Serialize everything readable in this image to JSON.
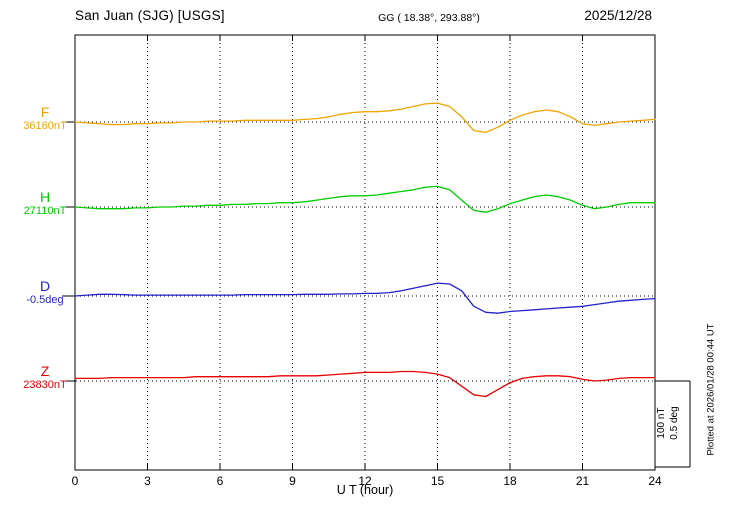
{
  "header": {
    "station": "San Juan (SJG)  [USGS]",
    "geo": "GG ( 18.38°, 293.88°)",
    "date": "2025/12/28"
  },
  "channels": [
    {
      "letter": "F",
      "value": "36160nT",
      "color": "#f0a500"
    },
    {
      "letter": "H",
      "value": "27110nT",
      "color": "#00cc00"
    },
    {
      "letter": "D",
      "value": "-0.5deg",
      "color": "#2222cc"
    },
    {
      "letter": "Z",
      "value": "23830nT",
      "color": "#e60000"
    }
  ],
  "x_axis": {
    "ticks": [
      "0",
      "3",
      "6",
      "9",
      "12",
      "15",
      "18",
      "21",
      "24"
    ],
    "label": "U T (hour)"
  },
  "scale_bar": {
    "lines": [
      "100 nT",
      "0.5 deg"
    ]
  },
  "plot_note": "Plotted at 2026/01/28 00:44 UT",
  "chart_data": {
    "type": "line",
    "title": "San Juan (SJG) [USGS] magnetogram 2025/12/28",
    "xlabel": "U T (hour)",
    "xlim": [
      0,
      24
    ],
    "x_tick_step": 3,
    "x_start": 0,
    "x_step_hours": 0.5,
    "n_points": 49,
    "grid": "dotted vertical gridlines every 3 h, dotted horizontal baseline per channel",
    "legend_position": "left-margin channel labels",
    "scale": {
      "nT_per_division": 100,
      "deg_per_division": 0.5
    },
    "series": [
      {
        "name": "F",
        "unit": "nT",
        "baseline": 36160,
        "color": "#f0a500",
        "offsets": [
          0,
          -1,
          -2,
          -3,
          -3,
          -2,
          -2,
          -1,
          -1,
          0,
          0,
          1,
          1,
          1,
          2,
          2,
          2,
          2,
          2,
          3,
          4,
          6,
          9,
          11,
          12,
          12,
          13,
          15,
          18,
          21,
          22,
          18,
          6,
          -10,
          -12,
          -6,
          2,
          8,
          12,
          14,
          12,
          6,
          -2,
          -4,
          -2,
          0,
          1,
          2,
          3
        ]
      },
      {
        "name": "H",
        "unit": "nT",
        "baseline": 27110,
        "color": "#00cc00",
        "offsets": [
          0,
          -1,
          -2,
          -2,
          -2,
          -1,
          -1,
          0,
          0,
          1,
          1,
          2,
          2,
          3,
          3,
          4,
          4,
          5,
          5,
          6,
          8,
          10,
          12,
          13,
          13,
          14,
          16,
          18,
          20,
          23,
          24,
          20,
          8,
          -4,
          -6,
          -2,
          4,
          8,
          12,
          14,
          12,
          8,
          2,
          -2,
          0,
          3,
          5,
          5,
          5
        ]
      },
      {
        "name": "D",
        "unit": "deg",
        "baseline": -0.5,
        "color": "#2222cc",
        "offsets": [
          0,
          0.005,
          0.01,
          0.01,
          0.008,
          0.005,
          0.005,
          0.005,
          0.005,
          0.005,
          0.005,
          0.005,
          0.005,
          0.005,
          0.008,
          0.008,
          0.008,
          0.008,
          0.008,
          0.01,
          0.01,
          0.01,
          0.012,
          0.012,
          0.015,
          0.015,
          0.02,
          0.03,
          0.045,
          0.06,
          0.075,
          0.07,
          0.03,
          -0.06,
          -0.095,
          -0.1,
          -0.09,
          -0.085,
          -0.08,
          -0.075,
          -0.07,
          -0.065,
          -0.06,
          -0.05,
          -0.04,
          -0.03,
          -0.025,
          -0.02,
          -0.015
        ]
      },
      {
        "name": "Z",
        "unit": "nT",
        "baseline": 23830,
        "color": "#e60000",
        "offsets": [
          3,
          3,
          3,
          4,
          4,
          4,
          4,
          4,
          4,
          4,
          5,
          5,
          5,
          5,
          5,
          5,
          5,
          6,
          6,
          6,
          6,
          7,
          8,
          9,
          10,
          10,
          10,
          11,
          11,
          10,
          8,
          4,
          -6,
          -16,
          -18,
          -10,
          -2,
          3,
          5,
          6,
          6,
          5,
          2,
          0,
          1,
          3,
          4,
          4,
          4
        ]
      }
    ]
  }
}
